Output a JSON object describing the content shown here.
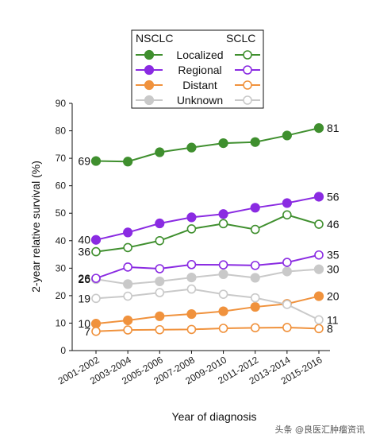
{
  "chart_data": {
    "type": "line",
    "xlabel": "Year of diagnosis",
    "ylabel": "2-year relative survival (%)",
    "ylim": [
      0,
      90
    ],
    "yticks": [
      0,
      10,
      20,
      30,
      40,
      50,
      60,
      70,
      80,
      90
    ],
    "categories": [
      "2001-2002",
      "2003-2004",
      "2005-2006",
      "2007-2008",
      "2009-2010",
      "2011-2012",
      "2013-2014",
      "2015-2016"
    ],
    "legend": {
      "placement": "top-center",
      "group_headers": [
        "NSCLC",
        "SCLC"
      ],
      "stages": [
        "Localized",
        "Regional",
        "Distant",
        "Unknown"
      ]
    },
    "series": [
      {
        "name": "Localized",
        "group": "NSCLC",
        "marker": "filled",
        "color": "#3f8f2e",
        "values": [
          69,
          68.8,
          72.2,
          73.9,
          75.5,
          75.9,
          78.3,
          81
        ],
        "start_label": "69",
        "end_label": "81"
      },
      {
        "name": "Regional",
        "group": "NSCLC",
        "marker": "filled",
        "color": "#8a2be2",
        "values": [
          40.3,
          43,
          46.3,
          48.5,
          49.7,
          52,
          53.7,
          56
        ],
        "start_label": "40",
        "end_label": "56"
      },
      {
        "name": "Distant",
        "group": "NSCLC",
        "marker": "filled",
        "color": "#f0923d",
        "values": [
          9.8,
          11,
          12.5,
          13.3,
          14.3,
          15.9,
          17,
          19.8
        ],
        "start_label": "10",
        "end_label": "20"
      },
      {
        "name": "Unknown",
        "group": "NSCLC",
        "marker": "filled",
        "color": "#c9c9c9",
        "values": [
          26,
          24.2,
          25.2,
          26.6,
          27.8,
          26.5,
          28.8,
          29.6
        ],
        "start_label": "26",
        "end_label": "30"
      },
      {
        "name": "Localized",
        "group": "SCLC",
        "marker": "open",
        "color": "#3f8f2e",
        "values": [
          36,
          37.5,
          40,
          44.3,
          46.2,
          44.1,
          49.4,
          46
        ],
        "start_label": "36",
        "end_label": "46"
      },
      {
        "name": "Regional",
        "group": "SCLC",
        "marker": "open",
        "color": "#8a2be2",
        "values": [
          26.3,
          30.4,
          29.8,
          31.3,
          31.2,
          31,
          32.1,
          34.8
        ],
        "start_label": "26",
        "end_label": "35"
      },
      {
        "name": "Distant",
        "group": "SCLC",
        "marker": "open",
        "color": "#f0923d",
        "values": [
          7,
          7.5,
          7.6,
          7.7,
          8.1,
          8.3,
          8.4,
          8
        ],
        "start_label": "7",
        "end_label": "8"
      },
      {
        "name": "Unknown",
        "group": "SCLC",
        "marker": "open",
        "color": "#c9c9c9",
        "values": [
          19,
          19.8,
          21.1,
          22.4,
          20.5,
          19.2,
          16.8,
          11.2
        ],
        "start_label": "19",
        "end_label": "11"
      }
    ]
  },
  "watermark": "头条 @良医汇肿瘤资讯"
}
